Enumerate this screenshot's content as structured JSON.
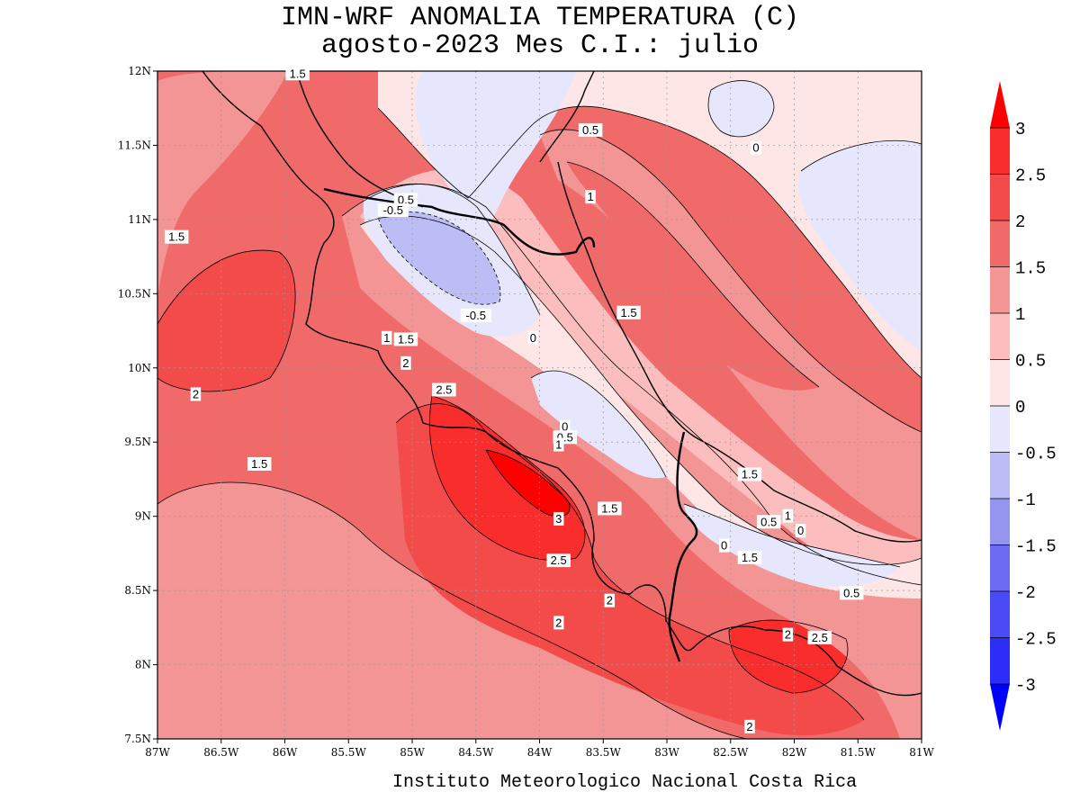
{
  "title_line1": "IMN-WRF  ANOMALIA TEMPERATURA (C)",
  "title_line2": "agosto-2023 Mes C.I.: julio",
  "credit": "Instituto Meteorologico Nacional Costa Rica",
  "axes": {
    "lon_ticks": [
      "87W",
      "86.5W",
      "86W",
      "85.5W",
      "85W",
      "84.5W",
      "84W",
      "83.5W",
      "83W",
      "82.5W",
      "82W",
      "81.5W",
      "81W"
    ],
    "lat_ticks": [
      "12N",
      "11.5N",
      "11N",
      "10.5N",
      "10N",
      "9.5N",
      "9N",
      "8.5N",
      "8N",
      "7.5N"
    ]
  },
  "colorbar": {
    "levels": [
      "3",
      "2.5",
      "2",
      "1.5",
      "1",
      "0.5",
      "0",
      "-0.5",
      "-1",
      "-1.5",
      "-2",
      "-2.5",
      "-3"
    ],
    "colors": [
      "#ff0000",
      "#fa2d2d",
      "#f34a4a",
      "#f16a6a",
      "#f39595",
      "#fbbdbd",
      "#fee6e6",
      "#e6e6fc",
      "#bdbdf6",
      "#9595f0",
      "#6a6af3",
      "#4a4af6",
      "#2d2dfa",
      "#0000ff"
    ]
  },
  "contour_labels": [
    {
      "text": "1.5",
      "lon": -85.9,
      "lat": 11.98
    },
    {
      "text": "0.5",
      "lon": -83.6,
      "lat": 11.6
    },
    {
      "text": "0",
      "lon": -82.3,
      "lat": 11.48
    },
    {
      "text": "1",
      "lon": -83.6,
      "lat": 11.15
    },
    {
      "text": "0.5",
      "lon": -85.05,
      "lat": 11.13
    },
    {
      "text": "-0.5",
      "lon": -85.15,
      "lat": 11.06
    },
    {
      "text": "1.5",
      "lon": -86.85,
      "lat": 10.88
    },
    {
      "text": "-0.5",
      "lon": -84.5,
      "lat": 10.35
    },
    {
      "text": "1.5",
      "lon": -83.3,
      "lat": 10.37
    },
    {
      "text": "0",
      "lon": -84.05,
      "lat": 10.2
    },
    {
      "text": "1",
      "lon": -85.2,
      "lat": 10.2
    },
    {
      "text": "1.5",
      "lon": -85.05,
      "lat": 10.19
    },
    {
      "text": "2",
      "lon": -85.05,
      "lat": 10.03
    },
    {
      "text": "2.5",
      "lon": -84.75,
      "lat": 9.85
    },
    {
      "text": "2",
      "lon": -86.7,
      "lat": 9.82
    },
    {
      "text": "0",
      "lon": -83.8,
      "lat": 9.6
    },
    {
      "text": "0.5",
      "lon": -83.8,
      "lat": 9.53
    },
    {
      "text": "1",
      "lon": -83.85,
      "lat": 9.48
    },
    {
      "text": "1.5",
      "lon": -86.2,
      "lat": 9.35
    },
    {
      "text": "1.5",
      "lon": -82.35,
      "lat": 9.28
    },
    {
      "text": "1.5",
      "lon": -83.45,
      "lat": 9.05
    },
    {
      "text": "3",
      "lon": -83.85,
      "lat": 8.98
    },
    {
      "text": "1",
      "lon": -82.05,
      "lat": 9.0
    },
    {
      "text": "0.5",
      "lon": -82.2,
      "lat": 8.96
    },
    {
      "text": "0",
      "lon": -81.95,
      "lat": 8.9
    },
    {
      "text": "0",
      "lon": -82.55,
      "lat": 8.8
    },
    {
      "text": "1.5",
      "lon": -82.35,
      "lat": 8.72
    },
    {
      "text": "2.5",
      "lon": -83.85,
      "lat": 8.7
    },
    {
      "text": "0.5",
      "lon": -81.55,
      "lat": 8.48
    },
    {
      "text": "2",
      "lon": -83.45,
      "lat": 8.43
    },
    {
      "text": "2",
      "lon": -83.85,
      "lat": 8.28
    },
    {
      "text": "2",
      "lon": -82.05,
      "lat": 8.2
    },
    {
      "text": "2.5",
      "lon": -81.8,
      "lat": 8.18
    },
    {
      "text": "2",
      "lon": -82.35,
      "lat": 7.58
    }
  ]
}
